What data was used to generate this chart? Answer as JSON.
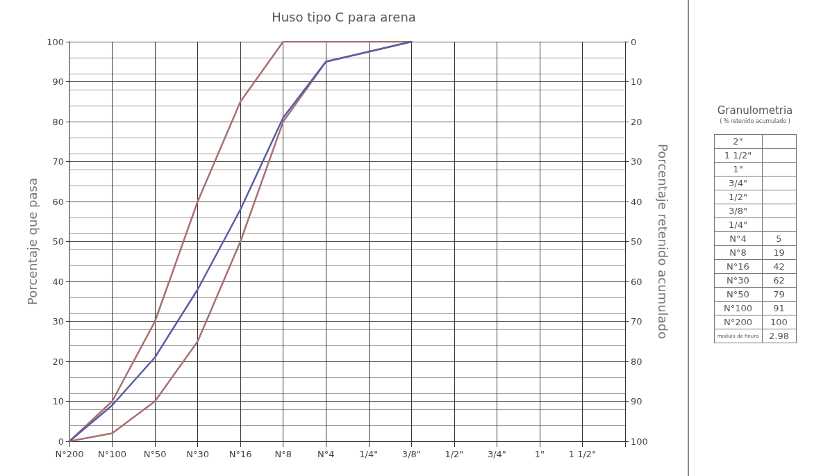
{
  "chart_data": [
    {
      "type": "line",
      "title": "Huso tipo C para arena",
      "ylabel": "Porcentaje que pasa",
      "y2label": "Porcentaje retenido acumulado",
      "categories": [
        "N°200",
        "N°100",
        "N°50",
        "N°30",
        "N°16",
        "N°8",
        "N°4",
        "1/4\"",
        "3/8\"",
        "1/2\"",
        "3/4\"",
        "1\"",
        "1 1/2\"",
        null
      ],
      "series": [
        {
          "color": "#a87070",
          "values": [
            0,
            10,
            30,
            60,
            85,
            100,
            100,
            100,
            100,
            null,
            null,
            null,
            null,
            null
          ]
        },
        {
          "color": "#a87070",
          "values": [
            0,
            2,
            10,
            25,
            50,
            80,
            95,
            null,
            100,
            null,
            null,
            null,
            null,
            null
          ]
        },
        {
          "color": "#5b5ba8",
          "values": [
            0,
            9,
            21,
            38,
            58,
            81,
            95,
            null,
            100,
            null,
            null,
            null,
            null,
            null
          ]
        }
      ],
      "ylim": [
        0,
        100
      ],
      "yticks": [
        0,
        10,
        20,
        30,
        40,
        50,
        60,
        70,
        80,
        90,
        100
      ],
      "y2lim": [
        100,
        0
      ],
      "y2ticks": [
        0,
        10,
        20,
        30,
        40,
        50,
        60,
        70,
        80,
        90,
        100
      ],
      "grid": true,
      "marker": "none",
      "line_style": "solid"
    },
    {
      "type": "other",
      "title": "Granulometria",
      "subtitle": "( % retenido acumulado )",
      "categories": [
        "2\"",
        "1 1/2\"",
        "1\"",
        "3/4\"",
        "1/2\"",
        "3/8\"",
        "1/4\"",
        "N°4",
        "N°8",
        "N°16",
        "N°30",
        "N°50",
        "N°100",
        "N°200"
      ],
      "values": [
        null,
        null,
        null,
        null,
        null,
        null,
        null,
        5,
        19,
        42,
        62,
        79,
        91,
        100
      ],
      "data_labels": true,
      "annotations": [
        "modulo de finura",
        "2.98"
      ]
    }
  ]
}
